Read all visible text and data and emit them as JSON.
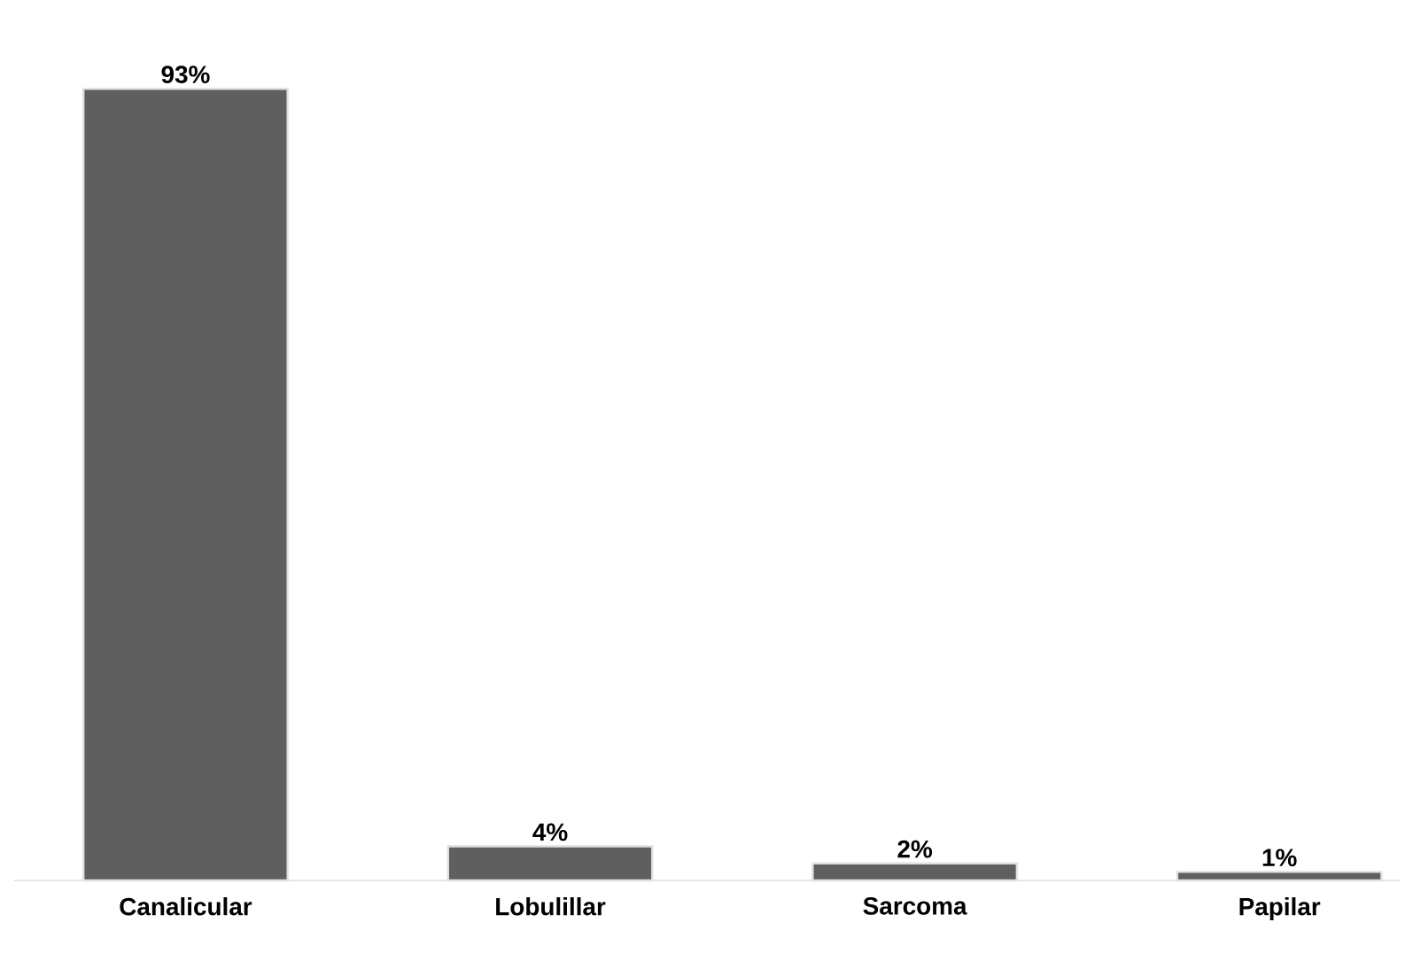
{
  "chart_data": {
    "type": "bar",
    "categories": [
      "Canalicular",
      "Lobulillar",
      "Sarcoma",
      "Papilar"
    ],
    "values": [
      93,
      4,
      2,
      1
    ],
    "value_labels": [
      "93%",
      "4%",
      "2%",
      "1%"
    ],
    "color": "#5f5f5f"
  }
}
